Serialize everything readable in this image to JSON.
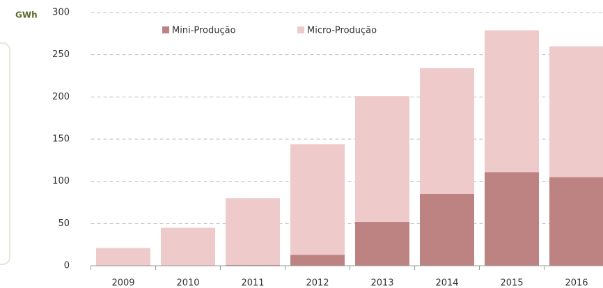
{
  "chart_data": {
    "type": "stacked_bar",
    "y_label": "GWh",
    "categories": [
      "2009",
      "2010",
      "2011",
      "2012",
      "2013",
      "2014",
      "2015",
      "2016"
    ],
    "series": [
      {
        "name": "Mini-Produção",
        "color": "#bd8383",
        "values": [
          0,
          0,
          1,
          13,
          52,
          85,
          111,
          105
        ]
      },
      {
        "name": "Micro-Produção",
        "color": "#eecaca",
        "values": [
          21,
          45,
          79,
          131,
          149,
          149,
          168,
          155
        ]
      }
    ],
    "ylim": [
      0,
      300
    ],
    "yticks": [
      0,
      50,
      100,
      150,
      200,
      250,
      300
    ],
    "grid": true,
    "legend": "top"
  }
}
